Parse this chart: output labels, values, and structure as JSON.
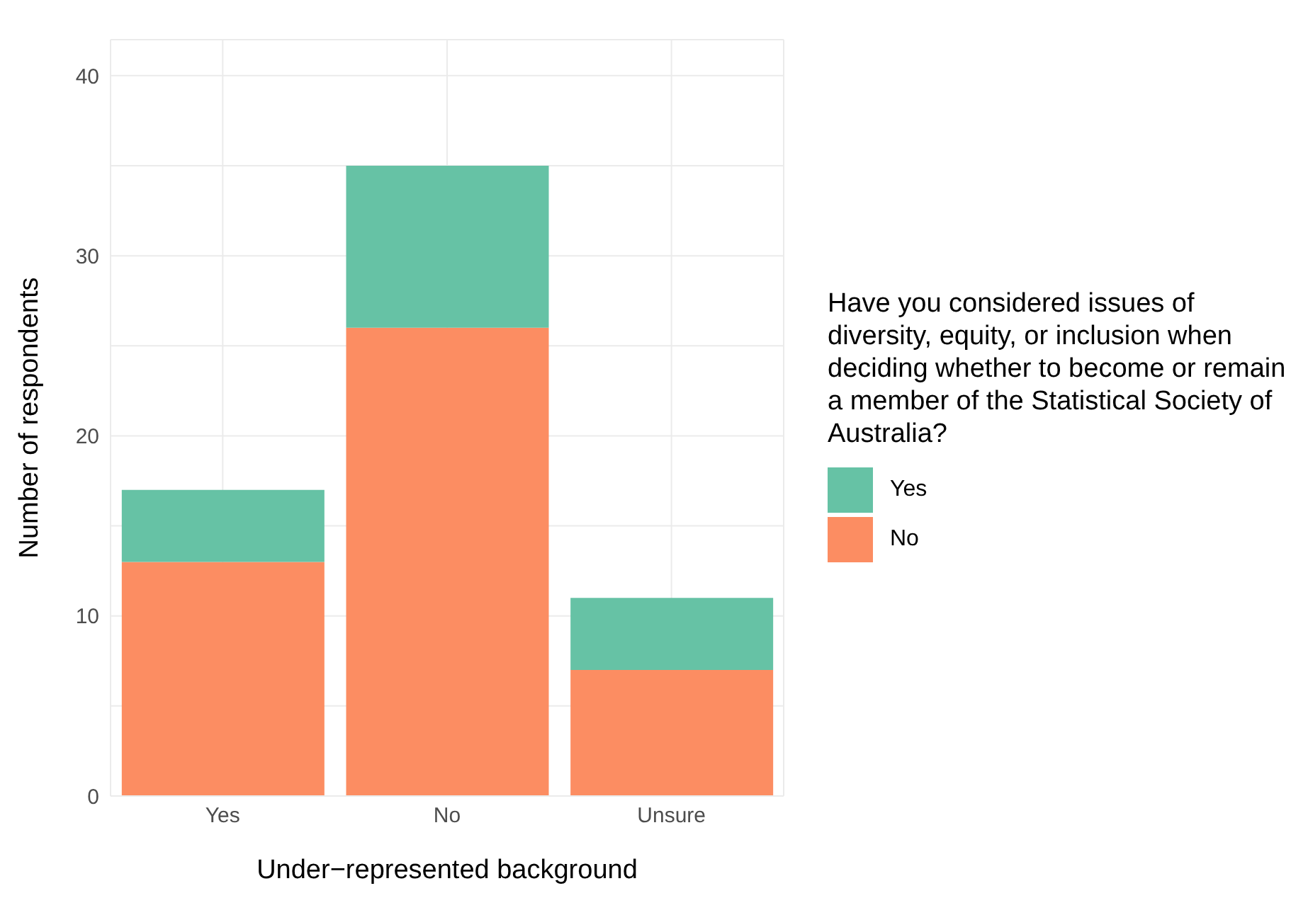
{
  "chart_data": {
    "type": "bar",
    "stacked": true,
    "xlabel": "Under−represented background",
    "ylabel": "Number of respondents",
    "legend_title": "Have you considered issues of diversity, equity, or inclusion when deciding whether to become or remain a member of the Statistical Society of Australia?",
    "categories": [
      "Yes",
      "No",
      "Unsure"
    ],
    "series": [
      {
        "name": "No",
        "color": "#fc8d62",
        "values": [
          13,
          26,
          7
        ]
      },
      {
        "name": "Yes",
        "color": "#66c2a5",
        "values": [
          4,
          9,
          4
        ]
      }
    ],
    "ylim": [
      0,
      42
    ],
    "yticks": [
      0,
      {
        "value": 5,
        "label": null
      },
      10,
      {
        "value": 15,
        "label": null
      },
      20,
      {
        "value": 25,
        "label": null
      },
      30,
      {
        "value": 35,
        "label": null
      },
      40
    ],
    "grid": true,
    "legend": "right"
  }
}
